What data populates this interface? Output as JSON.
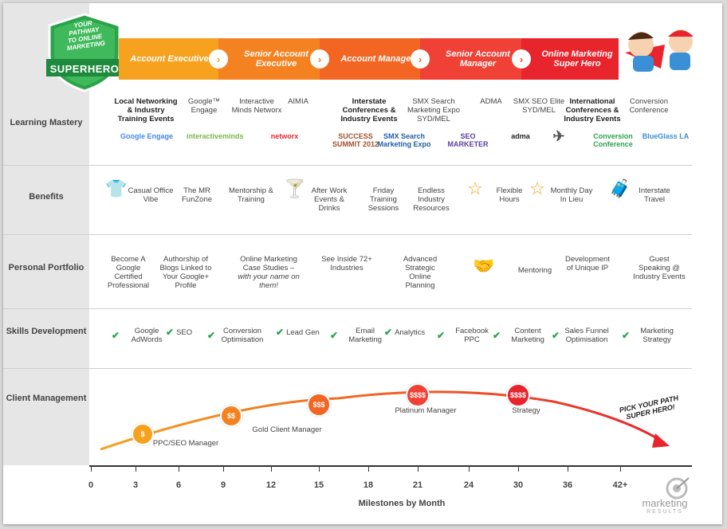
{
  "badge": {
    "line1": "YOUR",
    "line2": "PATHWAY",
    "line3": "TO ONLINE",
    "line4": "MARKETING",
    "title": "SUPERHERO"
  },
  "stages": [
    {
      "label": "Account Executive",
      "color": "#f6a21e"
    },
    {
      "label": "Senior Account Executive",
      "color": "#f58220"
    },
    {
      "label": "Account Manager",
      "color": "#f26522"
    },
    {
      "label": "Senior Account Manager",
      "color": "#ef4136"
    },
    {
      "label": "Online Marketing Super Hero",
      "color": "#e8242d"
    }
  ],
  "rows": {
    "learning": "Learning Mastery",
    "benefits": "Benefits",
    "portfolio": "Personal Portfolio",
    "skills": "Skills Development",
    "client": "Client Management"
  },
  "learning_items": [
    {
      "text": "Local Networking & Industry Training Events",
      "bold": true,
      "logo": "Google Engage"
    },
    {
      "text": "Google™ Engage",
      "bold": false,
      "logo": "interactiveminds"
    },
    {
      "text": "Interactive Minds Networx",
      "bold": false,
      "logo": "networx"
    },
    {
      "text": "AIMIA",
      "bold": false,
      "logo": "SUCCESS SUMMIT 2012"
    },
    {
      "text": "Interstate Conferences & Industry Events",
      "bold": true,
      "logo": "SMX Search Marketing Expo"
    },
    {
      "text": "SMX Search Marketing Expo SYD/MEL",
      "bold": false,
      "logo": "SEO MARKETER"
    },
    {
      "text": "ADMA",
      "bold": false,
      "logo": "adma"
    },
    {
      "text": "SMX SEO Elite SYD/MEL",
      "bold": false,
      "logo": "airplane-icon"
    },
    {
      "text": "International Conferences & Industry Events",
      "bold": true,
      "logo": "Conversion Conference"
    },
    {
      "text": "Conversion Conference",
      "bold": false,
      "logo": "BlueGlass LA"
    }
  ],
  "benefits": [
    {
      "text": "Casual Office Vibe",
      "icon": "shirt-icon"
    },
    {
      "text": "The MR FunZone",
      "icon": ""
    },
    {
      "text": "Mentorship & Training",
      "icon": ""
    },
    {
      "text": "After Work Events & Drinks",
      "icon": "cocktail-icon"
    },
    {
      "text": "Friday Training Sessions",
      "icon": ""
    },
    {
      "text": "Endless Industry Resources",
      "icon": ""
    },
    {
      "text": "Flexible Hours",
      "icon": "star-icon"
    },
    {
      "text": "Monthly Day In Lieu",
      "icon": "star-icon"
    },
    {
      "text": "Interstate Travel",
      "icon": "suitcase-icon"
    }
  ],
  "portfolio": [
    {
      "text": "Become A Google Certified Professional"
    },
    {
      "text": "Authorship of Blogs Linked to Your Google+ Profile"
    },
    {
      "text": "Online Marketing Case Studies –",
      "sub": "with your name on them!"
    },
    {
      "text": "See Inside 72+ Industries"
    },
    {
      "text": "Advanced Strategic Online Planning"
    },
    {
      "text": "Mentoring",
      "icon": "handshake-icon"
    },
    {
      "text": "Development of Unique IP"
    },
    {
      "text": "Guest Speaking @ Industry Events"
    }
  ],
  "skills": [
    "Google AdWords",
    "SEO",
    "Conversion Optimisation",
    "Lead Gen",
    "Email Marketing",
    "Analytics",
    "Facebook PPC",
    "Content Marketing",
    "Sales Funnel Optimisation",
    "Marketing Strategy"
  ],
  "milestones": [
    {
      "month": 3.5,
      "symbol": "$",
      "label": "PPC/SEO  Manager"
    },
    {
      "month": 9.5,
      "symbol": "$$",
      "label": "Gold Client Manager"
    },
    {
      "month": 15,
      "symbol": "$$$",
      "label": ""
    },
    {
      "month": 21,
      "symbol": "$$$$",
      "label": "Platinum Manager"
    },
    {
      "month": 30,
      "symbol": "$$$$",
      "label": "Strategy"
    }
  ],
  "ticks": [
    "0",
    "3",
    "6",
    "9",
    "12",
    "15",
    "18",
    "21",
    "24",
    "27",
    "30",
    "36",
    "42+"
  ],
  "xlabel": "Milestones by Month",
  "callout": {
    "line1": "PICK YOUR PATH",
    "line2": "SUPER HERO!"
  },
  "brand": {
    "name": "marketing",
    "sub": "RESULTS"
  },
  "colors": {
    "green": "#2aa34a",
    "orange": "#f58220",
    "red": "#e8242d"
  }
}
